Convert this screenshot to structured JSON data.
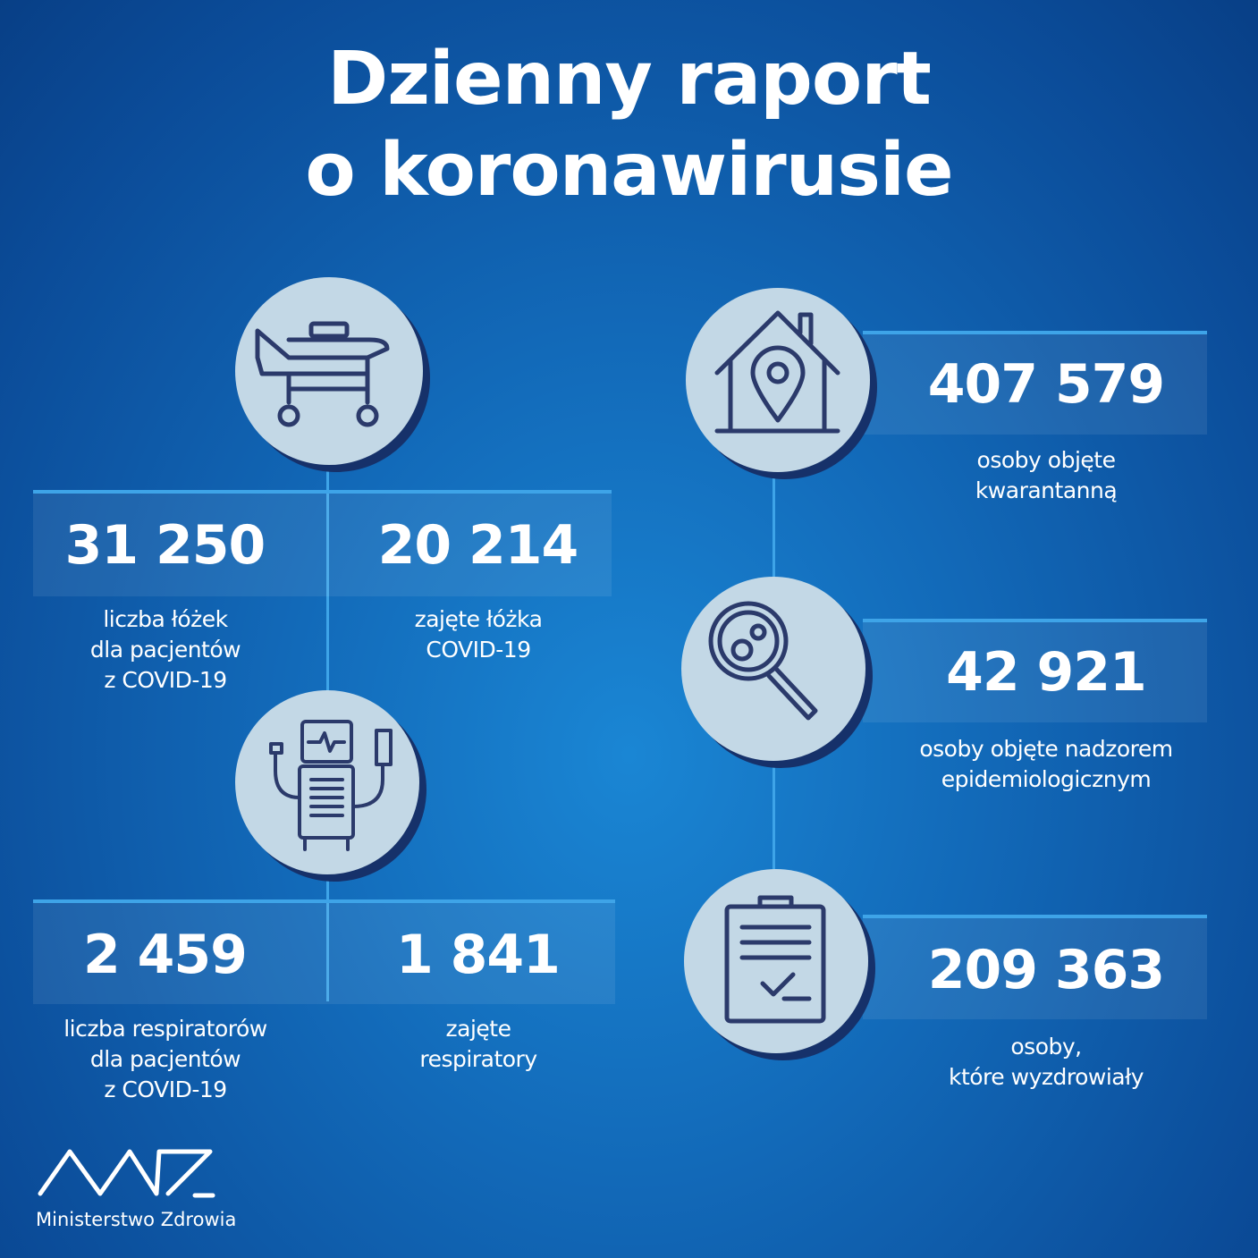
{
  "title": {
    "line1": "Dzienny raport",
    "line2": "o koronawirusie"
  },
  "stats": {
    "beds_total": {
      "value": "31 250",
      "label": [
        "liczba łóżek",
        "dla pacjentów",
        "z COVID-19"
      ]
    },
    "beds_occupied": {
      "value": "20 214",
      "label": [
        "zajęte łóżka",
        "COVID-19"
      ]
    },
    "ventilators_total": {
      "value": "2 459",
      "label": [
        "liczba respiratorów",
        "dla pacjentów",
        "z COVID-19"
      ]
    },
    "ventilators_occupied": {
      "value": "1 841",
      "label": [
        "zajęte",
        "respiratory"
      ]
    },
    "quarantine": {
      "value": "407 579",
      "label": [
        "osoby objęte",
        "kwarantanną"
      ]
    },
    "surveillance": {
      "value": "42 921",
      "label": [
        "osoby objęte nadzorem",
        "epidemiologicznym"
      ]
    },
    "recovered": {
      "value": "209 363",
      "label": [
        "osoby,",
        "które wyzdrowiały"
      ]
    }
  },
  "icons": [
    "hospital-bed-icon",
    "ventilator-icon",
    "house-location-icon",
    "magnifier-virus-icon",
    "clipboard-check-icon"
  ],
  "logo": {
    "text": "Ministerstwo Zdrowia"
  },
  "colors": {
    "accent_line": "#3ea4e8",
    "circle": "#c3d8e6",
    "icon_stroke": "#2b3a6b"
  }
}
